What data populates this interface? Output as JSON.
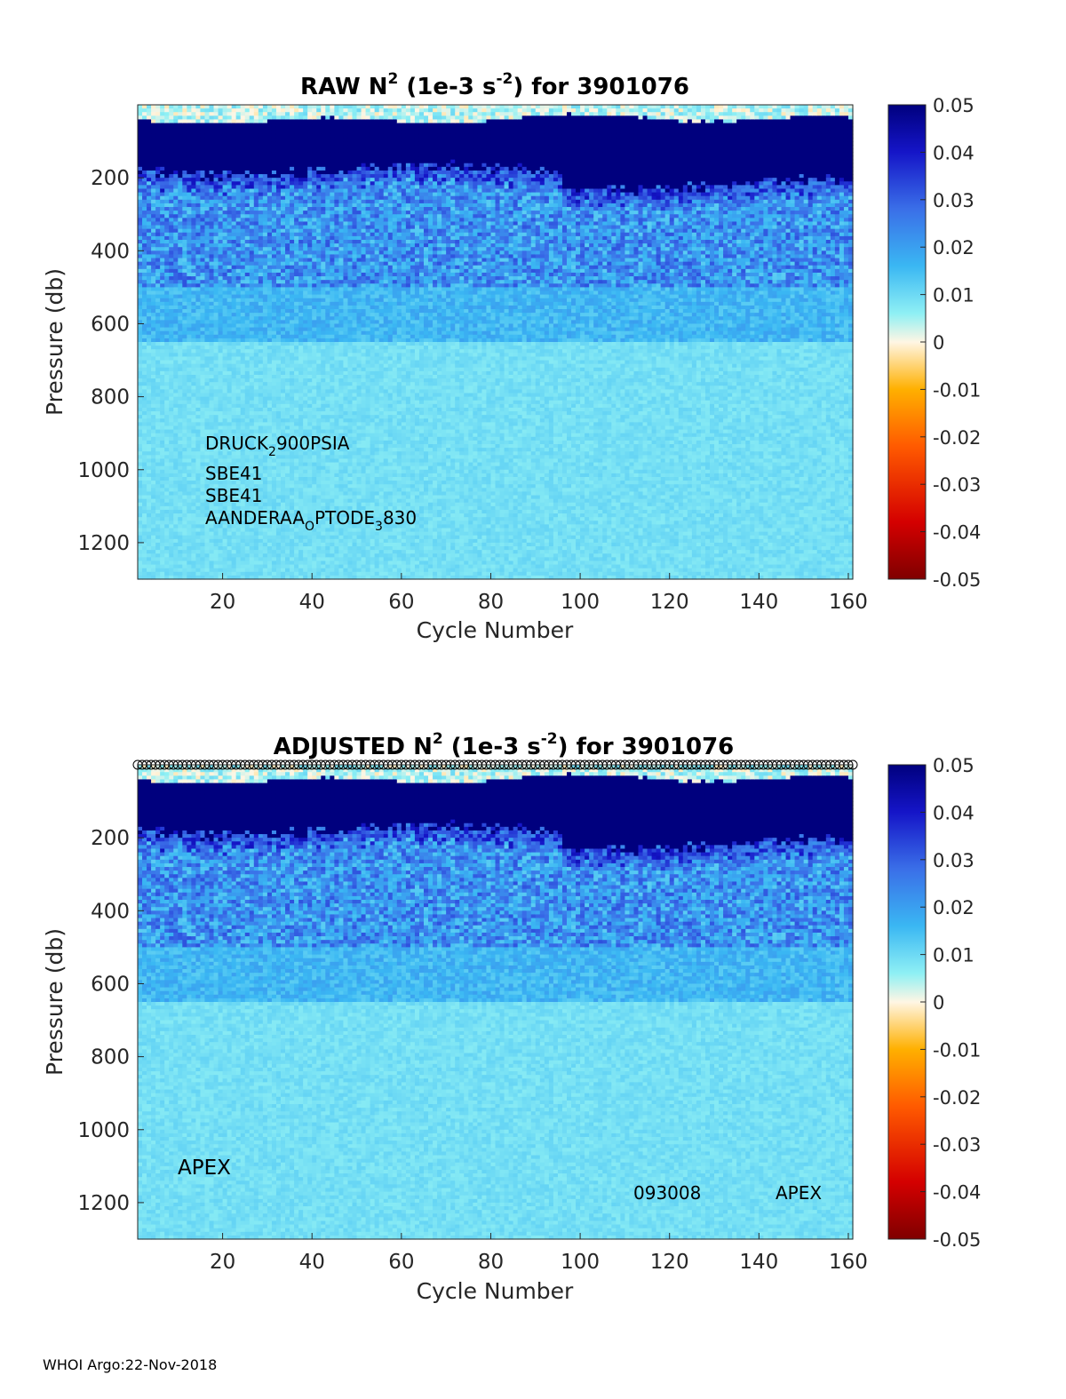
{
  "footer": "WHOI Argo:22-Nov-2018",
  "chart_data": [
    {
      "type": "heatmap",
      "title_main": "RAW N",
      "title_sup": "2",
      "title_mid": " (1e-3 s",
      "title_sup2": "-2",
      "title_end": ") for 3901076",
      "xlabel": "Cycle Number",
      "ylabel": "Pressure (db)",
      "xlim": [
        1,
        161
      ],
      "ylim": [
        0,
        1300
      ],
      "y_reversed": true,
      "xticks": [
        20,
        40,
        60,
        80,
        100,
        120,
        140,
        160
      ],
      "yticks": [
        200,
        400,
        600,
        800,
        1000,
        1200
      ],
      "colorbar": {
        "min": -0.05,
        "max": 0.05,
        "ticks": [
          "0.05",
          "0.04",
          "0.03",
          "0.02",
          "0.01",
          "0",
          "-0.01",
          "-0.02",
          "-0.03",
          "-0.04",
          "-0.05"
        ]
      },
      "sensor_annotations": [
        {
          "parts": [
            "DRUCK",
            "2",
            "900PSIA"
          ]
        },
        {
          "parts": [
            "SBE41"
          ]
        },
        {
          "parts": [
            "SBE41"
          ]
        },
        {
          "parts": [
            "AANDERAA",
            "O",
            "PTODE",
            "3",
            "830"
          ]
        }
      ],
      "approx_profile": [
        {
          "pressure_range": [
            0,
            40
          ],
          "value": 0.0
        },
        {
          "pressure_range": [
            40,
            150
          ],
          "value": 0.05
        },
        {
          "pressure_range": [
            150,
            500
          ],
          "value": 0.02
        },
        {
          "pressure_range": [
            500,
            650
          ],
          "value": 0.014
        },
        {
          "pressure_range": [
            650,
            1300
          ],
          "value": 0.009
        }
      ]
    },
    {
      "type": "heatmap",
      "title_main": "ADJUSTED N",
      "title_sup": "2",
      "title_mid": " (1e-3 s",
      "title_sup2": "-2",
      "title_end": ") for 3901076",
      "xlabel": "Cycle Number",
      "ylabel": "Pressure (db)",
      "xlim": [
        1,
        161
      ],
      "ylim": [
        0,
        1300
      ],
      "y_reversed": true,
      "xticks": [
        20,
        40,
        60,
        80,
        100,
        120,
        140,
        160
      ],
      "yticks": [
        200,
        400,
        600,
        800,
        1000,
        1200
      ],
      "colorbar": {
        "min": -0.05,
        "max": 0.05,
        "ticks": [
          "0.05",
          "0.04",
          "0.03",
          "0.02",
          "0.01",
          "0",
          "-0.01",
          "-0.02",
          "-0.03",
          "-0.04",
          "-0.05"
        ]
      },
      "platform_label": "APEX",
      "firmware_label": "093008",
      "platform_label_right": "APEX",
      "top_markers": "circles at every cycle",
      "approx_profile": [
        {
          "pressure_range": [
            0,
            40
          ],
          "value": 0.0
        },
        {
          "pressure_range": [
            40,
            150
          ],
          "value": 0.05
        },
        {
          "pressure_range": [
            150,
            500
          ],
          "value": 0.02
        },
        {
          "pressure_range": [
            500,
            650
          ],
          "value": 0.014
        },
        {
          "pressure_range": [
            650,
            1300
          ],
          "value": 0.009
        }
      ]
    }
  ]
}
